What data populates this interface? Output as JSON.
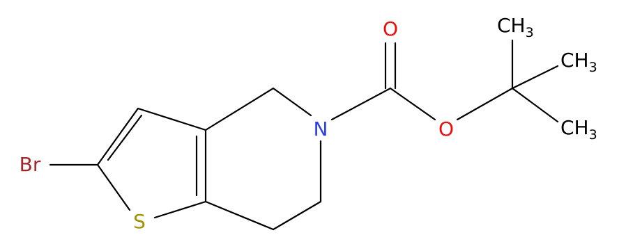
{
  "atoms": [
    {
      "label": "Br"
    },
    {
      "label": "S"
    },
    {
      "label": "N"
    },
    {
      "label": "O"
    },
    {
      "label": "O"
    },
    {
      "label": "CH",
      "subscript": "3"
    },
    {
      "label": "CH",
      "subscript": "3"
    },
    {
      "label": "CH",
      "subscript": "3"
    }
  ]
}
